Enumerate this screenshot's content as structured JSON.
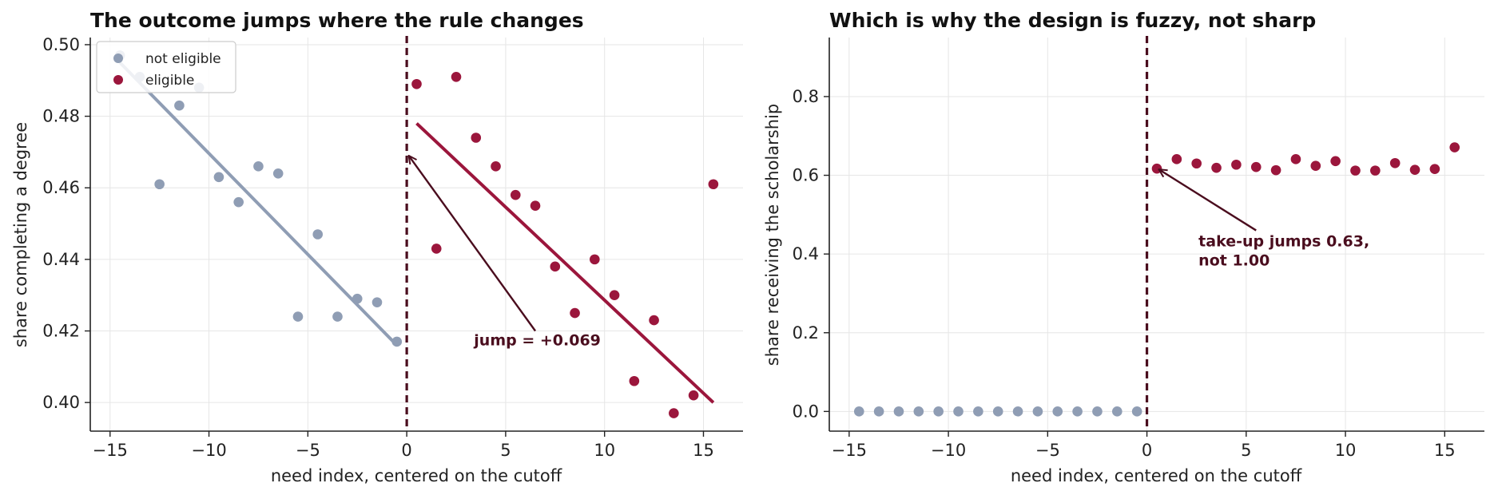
{
  "colors": {
    "not_eligible": "#8f9db4",
    "eligible": "#9b163c",
    "cutoff": "#4a0d1e",
    "annotation": "#4a0d1e",
    "grid": "#e6e6e6"
  },
  "chart_data": [
    {
      "type": "scatter",
      "title": "The outcome jumps where the rule changes",
      "xlabel": "need index, centered on the cutoff",
      "ylabel": "share completing a degree",
      "xlim": [
        -16,
        17
      ],
      "ylim": [
        0.392,
        0.502
      ],
      "xticks": [
        -15,
        -10,
        -5,
        0,
        5,
        10,
        15
      ],
      "xtick_labels": [
        "−15",
        "−10",
        "−5",
        "0",
        "5",
        "10",
        "15"
      ],
      "yticks": [
        0.4,
        0.42,
        0.44,
        0.46,
        0.48,
        0.5
      ],
      "ytick_labels": [
        "0.40",
        "0.42",
        "0.44",
        "0.46",
        "0.48",
        "0.50"
      ],
      "grid": true,
      "legend": {
        "placement": "top-left",
        "entries": [
          "not eligible",
          "eligible"
        ]
      },
      "cutoff_x": 0,
      "series": [
        {
          "name": "not eligible",
          "x": [
            -14.5,
            -13.5,
            -12.5,
            -11.5,
            -10.5,
            -9.5,
            -8.5,
            -7.5,
            -6.5,
            -5.5,
            -4.5,
            -3.5,
            -2.5,
            -1.5,
            -0.5
          ],
          "y": [
            0.497,
            0.491,
            0.461,
            0.483,
            0.488,
            0.463,
            0.456,
            0.466,
            0.464,
            0.424,
            0.447,
            0.424,
            0.429,
            0.428,
            0.417
          ]
        },
        {
          "name": "eligible",
          "x": [
            0.5,
            1.5,
            2.5,
            3.5,
            4.5,
            5.5,
            6.5,
            7.5,
            8.5,
            9.5,
            10.5,
            11.5,
            12.5,
            13.5,
            14.5,
            15.5
          ],
          "y": [
            0.489,
            0.443,
            0.491,
            0.474,
            0.466,
            0.458,
            0.455,
            0.438,
            0.425,
            0.44,
            0.43,
            0.406,
            0.423,
            0.397,
            0.402,
            0.461
          ]
        }
      ],
      "fit_lines": [
        {
          "series": "not eligible",
          "x": [
            -14.5,
            -0.5
          ],
          "y": [
            0.495,
            0.416
          ]
        },
        {
          "series": "eligible",
          "x": [
            0.5,
            15.5
          ],
          "y": [
            0.478,
            0.4
          ]
        }
      ],
      "annotation": {
        "text": "jump = +0.069",
        "text_x": 3.4,
        "text_y": 0.416,
        "arrow_from": [
          6.5,
          0.42
        ],
        "arrow_to": [
          0.1,
          0.469
        ]
      }
    },
    {
      "type": "scatter",
      "title": "Which is why the design is fuzzy, not sharp",
      "xlabel": "need index, centered on the cutoff",
      "ylabel": "share receiving the scholarship",
      "xlim": [
        -16,
        17
      ],
      "ylim": [
        -0.05,
        0.95
      ],
      "xticks": [
        -15,
        -10,
        -5,
        0,
        5,
        10,
        15
      ],
      "xtick_labels": [
        "−15",
        "−10",
        "−5",
        "0",
        "5",
        "10",
        "15"
      ],
      "yticks": [
        0.0,
        0.2,
        0.4,
        0.6,
        0.8
      ],
      "ytick_labels": [
        "0.0",
        "0.2",
        "0.4",
        "0.6",
        "0.8"
      ],
      "grid": true,
      "cutoff_x": 0,
      "series": [
        {
          "name": "not eligible",
          "x": [
            -14.5,
            -13.5,
            -12.5,
            -11.5,
            -10.5,
            -9.5,
            -8.5,
            -7.5,
            -6.5,
            -5.5,
            -4.5,
            -3.5,
            -2.5,
            -1.5,
            -0.5
          ],
          "y": [
            0,
            0,
            0,
            0,
            0,
            0,
            0,
            0,
            0,
            0,
            0,
            0,
            0,
            0,
            0
          ]
        },
        {
          "name": "eligible",
          "x": [
            0.5,
            1.5,
            2.5,
            3.5,
            4.5,
            5.5,
            6.5,
            7.5,
            8.5,
            9.5,
            10.5,
            11.5,
            12.5,
            13.5,
            14.5,
            15.5
          ],
          "y": [
            0.617,
            0.641,
            0.63,
            0.619,
            0.627,
            0.621,
            0.613,
            0.641,
            0.624,
            0.636,
            0.612,
            0.612,
            0.631,
            0.614,
            0.616,
            0.671
          ]
        }
      ],
      "annotation": {
        "text_lines": [
          "take-up jumps 0.63,",
          "not 1.00"
        ],
        "text_x": 2.6,
        "text_y": 0.42,
        "arrow_from": [
          5.5,
          0.46
        ],
        "arrow_to": [
          0.6,
          0.615
        ]
      }
    }
  ]
}
